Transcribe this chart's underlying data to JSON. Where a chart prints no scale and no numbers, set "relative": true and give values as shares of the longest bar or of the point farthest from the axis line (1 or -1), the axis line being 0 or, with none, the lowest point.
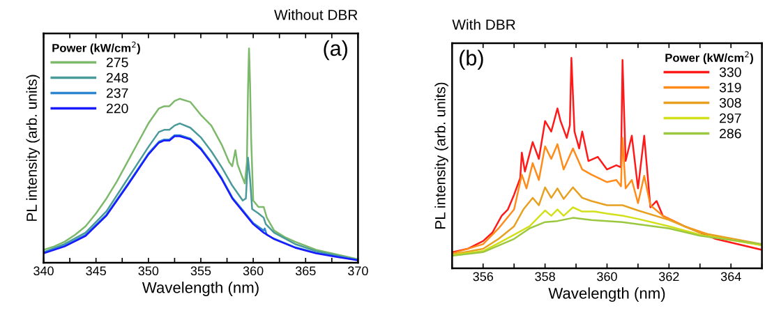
{
  "chart_data": [
    {
      "type": "line",
      "title": "Without DBR",
      "xlabel": "Wavelength (nm)",
      "ylabel": "PL intensity (arb. units)",
      "legend_title": "Power (kW/cm$^{2}$)",
      "annotations": [
        "(a)"
      ],
      "relative": true,
      "legend": "top left",
      "tick_labels": "x",
      "xlim": [
        340,
        370
      ],
      "xticks": [
        340,
        {
          "value": 342.5,
          "label": null
        },
        345,
        {
          "value": 347.5,
          "label": null
        },
        350,
        {
          "value": 352.5,
          "label": null
        },
        355,
        {
          "value": 357.5,
          "label": null
        },
        360,
        {
          "value": 362.5,
          "label": null
        },
        365,
        {
          "value": 367.5,
          "label": null
        },
        370
      ],
      "series": [
        {
          "name": "275",
          "color": "#7db96a",
          "x": [
            340,
            341,
            342,
            343,
            344,
            345,
            346,
            347,
            348,
            349,
            350,
            351,
            351.5,
            352,
            352.5,
            353,
            354,
            355,
            356,
            357,
            357.7,
            358,
            358.3,
            358.5,
            358.8,
            359.2,
            359.4,
            359.5,
            359.6,
            359.7,
            359.8,
            360,
            360.5,
            361,
            361.3,
            362,
            363,
            364,
            366,
            368,
            370
          ],
          "values": [
            0.06,
            0.076,
            0.098,
            0.13,
            0.17,
            0.23,
            0.3,
            0.38,
            0.47,
            0.56,
            0.65,
            0.72,
            0.73,
            0.73,
            0.755,
            0.765,
            0.75,
            0.69,
            0.64,
            0.55,
            0.47,
            0.45,
            0.525,
            0.46,
            0.42,
            0.37,
            0.47,
            0.8,
            1.0,
            0.835,
            0.585,
            0.29,
            0.26,
            0.26,
            0.21,
            0.15,
            0.12,
            0.098,
            0.06,
            0.038,
            0.016
          ]
        },
        {
          "name": "248",
          "color": "#4a9a9a",
          "x": [
            340,
            342,
            344,
            346,
            348,
            350,
            351,
            351.5,
            352,
            352.5,
            353,
            354,
            355,
            356,
            357,
            358,
            359,
            359.3,
            359.5,
            359.7,
            359.9,
            360.5,
            361,
            361.2,
            362,
            364,
            366,
            368,
            370
          ],
          "values": [
            0.049,
            0.087,
            0.14,
            0.24,
            0.39,
            0.54,
            0.61,
            0.62,
            0.62,
            0.64,
            0.65,
            0.63,
            0.585,
            0.52,
            0.445,
            0.36,
            0.29,
            0.3,
            0.49,
            0.39,
            0.25,
            0.23,
            0.21,
            0.18,
            0.14,
            0.087,
            0.054,
            0.033,
            0.013
          ]
        },
        {
          "name": "237",
          "color": "#2e86d0",
          "x": [
            340,
            342,
            344,
            346,
            348,
            350,
            351,
            351.5,
            352,
            352.5,
            353,
            354,
            355,
            356,
            357,
            358,
            359,
            360,
            361,
            361.1,
            361.3,
            362,
            364,
            366,
            368,
            370
          ],
          "values": [
            0.048,
            0.08,
            0.13,
            0.225,
            0.365,
            0.51,
            0.565,
            0.575,
            0.575,
            0.595,
            0.595,
            0.58,
            0.535,
            0.47,
            0.395,
            0.305,
            0.245,
            0.185,
            0.15,
            0.16,
            0.13,
            0.112,
            0.072,
            0.046,
            0.029,
            0.013
          ]
        },
        {
          "name": "220",
          "color": "#1a1aff",
          "x": [
            340,
            342,
            344,
            346,
            348,
            350,
            351,
            351.5,
            352,
            352.5,
            353,
            354,
            355,
            356,
            357,
            358,
            359,
            360,
            361,
            362,
            364,
            366,
            368,
            370
          ],
          "values": [
            0.044,
            0.076,
            0.125,
            0.22,
            0.36,
            0.505,
            0.56,
            0.57,
            0.57,
            0.59,
            0.59,
            0.575,
            0.53,
            0.465,
            0.39,
            0.3,
            0.24,
            0.18,
            0.14,
            0.11,
            0.07,
            0.044,
            0.027,
            0.011
          ]
        }
      ]
    },
    {
      "type": "line",
      "title": "With DBR",
      "xlabel": "Wavelength (nm)",
      "ylabel": "PL intensity (arb. units)",
      "legend_title": "Power (kW/cm$^{2}$)",
      "annotations": [
        "(b)"
      ],
      "relative": true,
      "legend": "top right",
      "tick_labels": "x",
      "xlim": [
        355,
        365
      ],
      "xticks": [
        {
          "value": 355,
          "label": null
        },
        356,
        {
          "value": 357,
          "label": null
        },
        358,
        {
          "value": 359,
          "label": null
        },
        360,
        {
          "value": 361,
          "label": null
        },
        362,
        {
          "value": 363,
          "label": null
        },
        364,
        {
          "value": 365,
          "label": null
        }
      ],
      "series": [
        {
          "name": "330",
          "color": "#ff1a1a",
          "x": [
            355,
            355.5,
            356,
            356.3,
            356.6,
            356.8,
            357,
            357.2,
            357.25,
            357.35,
            357.6,
            357.8,
            358,
            358.2,
            358.4,
            358.5,
            358.7,
            358.8,
            358.85,
            358.95,
            359.1,
            359.2,
            359.4,
            359.7,
            360,
            360.3,
            360.45,
            360.5,
            360.6,
            360.8,
            361,
            361.2,
            361.4,
            361.6,
            361.8,
            362.5,
            363.5,
            365
          ],
          "values": [
            0.077,
            0.093,
            0.13,
            0.17,
            0.25,
            0.28,
            0.35,
            0.43,
            0.55,
            0.46,
            0.6,
            0.52,
            0.7,
            0.65,
            0.76,
            0.7,
            0.62,
            0.68,
            1.0,
            0.65,
            0.57,
            0.65,
            0.51,
            0.53,
            0.47,
            0.49,
            0.48,
            0.99,
            0.51,
            0.63,
            0.38,
            0.63,
            0.29,
            0.32,
            0.25,
            0.2,
            0.14,
            0.088
          ]
        },
        {
          "name": "319",
          "color": "#ff8c1a",
          "x": [
            355,
            356,
            356.5,
            357,
            357.25,
            357.4,
            357.6,
            357.8,
            358,
            358.2,
            358.4,
            358.6,
            358.9,
            359.2,
            359.5,
            360,
            360.3,
            360.45,
            360.5,
            360.6,
            360.8,
            361,
            361.2,
            361.4,
            361.8,
            362.5,
            363.5,
            365
          ],
          "values": [
            0.071,
            0.115,
            0.19,
            0.28,
            0.445,
            0.38,
            0.5,
            0.42,
            0.58,
            0.52,
            0.59,
            0.47,
            0.57,
            0.47,
            0.445,
            0.41,
            0.42,
            0.39,
            0.62,
            0.38,
            0.42,
            0.31,
            0.44,
            0.3,
            0.25,
            0.2,
            0.15,
            0.11
          ]
        },
        {
          "name": "308",
          "color": "#e8a020",
          "x": [
            355,
            356,
            356.5,
            357,
            357.3,
            357.6,
            357.8,
            358,
            358.2,
            358.4,
            358.6,
            358.9,
            359.2,
            359.5,
            360,
            360.5,
            361,
            362,
            363,
            365
          ],
          "values": [
            0.066,
            0.093,
            0.14,
            0.2,
            0.28,
            0.335,
            0.3,
            0.385,
            0.335,
            0.38,
            0.33,
            0.385,
            0.335,
            0.32,
            0.3,
            0.3,
            0.275,
            0.23,
            0.17,
            0.115
          ]
        },
        {
          "name": "297",
          "color": "#d2e01a",
          "x": [
            355,
            356,
            356.5,
            357,
            357.5,
            358,
            358.2,
            358.4,
            358.6,
            358.9,
            359.2,
            359.6,
            360,
            360.5,
            361,
            362,
            363,
            365
          ],
          "values": [
            0.063,
            0.082,
            0.12,
            0.16,
            0.2,
            0.275,
            0.25,
            0.28,
            0.25,
            0.29,
            0.27,
            0.27,
            0.26,
            0.25,
            0.235,
            0.2,
            0.16,
            0.11
          ]
        },
        {
          "name": "286",
          "color": "#9cc840",
          "x": [
            355,
            356,
            357,
            357.5,
            358,
            358.4,
            358.9,
            359.5,
            360,
            360.5,
            361,
            362,
            363,
            365
          ],
          "values": [
            0.06,
            0.077,
            0.14,
            0.19,
            0.22,
            0.225,
            0.24,
            0.23,
            0.225,
            0.22,
            0.21,
            0.19,
            0.155,
            0.115
          ]
        }
      ]
    }
  ]
}
